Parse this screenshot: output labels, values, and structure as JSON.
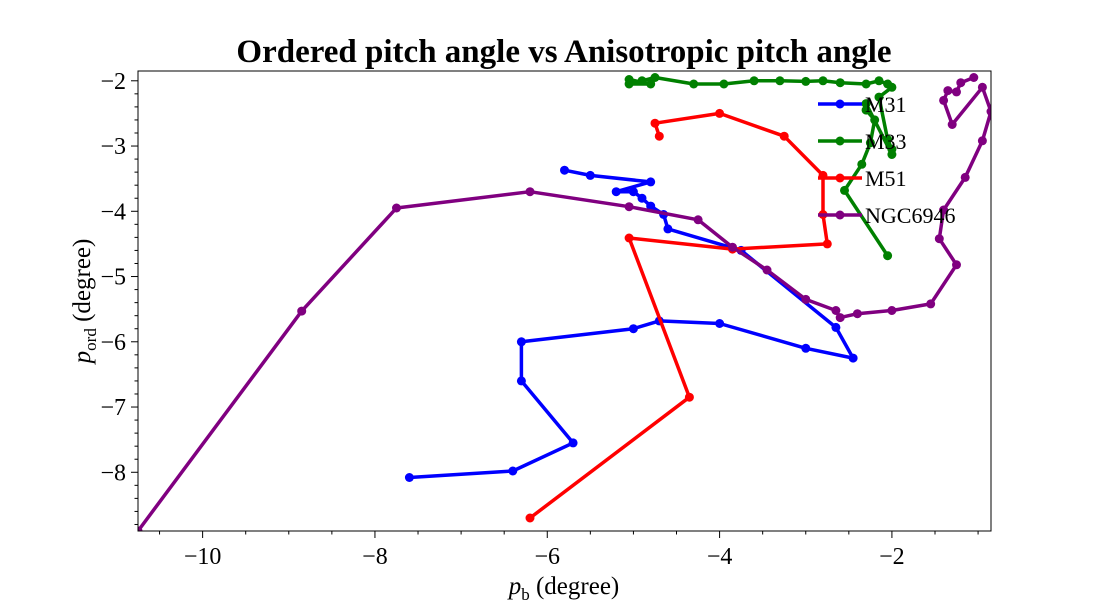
{
  "chart_data": {
    "type": "line",
    "title": "Ordered pitch angle vs Anisotropic pitch angle",
    "xlabel": {
      "main": "p",
      "sub": "b",
      "rest": " (degree)"
    },
    "ylabel": {
      "main": "p",
      "sub": "ord",
      "rest": " (degree)"
    },
    "xlim": [
      -10.75,
      -0.85
    ],
    "ylim": [
      -8.9,
      -1.85
    ],
    "x_ticks": [
      -10,
      -8,
      -6,
      -4,
      -2
    ],
    "x_tick_labels": [
      "−10",
      "−8",
      "−6",
      "−4",
      "−2"
    ],
    "y_ticks": [
      -8,
      -7,
      -6,
      -5,
      -4,
      -3,
      -2
    ],
    "y_tick_labels": [
      "−8",
      "−7",
      "−6",
      "−5",
      "−4",
      "−3",
      "−2"
    ],
    "legend_position": "top-right",
    "series": [
      {
        "name": "M31",
        "color": "#0000ff",
        "x": [
          -7.6,
          -6.4,
          -5.7,
          -6.3,
          -6.3,
          -5.0,
          -4.7,
          -4.0,
          -3.0,
          -2.45,
          -2.65,
          -3.75,
          -4.6,
          -4.65,
          -4.8,
          -4.9,
          -5.0,
          -5.2,
          -4.8,
          -5.5,
          -5.8
        ],
        "y": [
          -8.08,
          -7.98,
          -7.55,
          -6.6,
          -6.0,
          -5.8,
          -5.68,
          -5.72,
          -6.1,
          -6.25,
          -5.78,
          -4.6,
          -4.27,
          -4.05,
          -3.92,
          -3.8,
          -3.7,
          -3.7,
          -3.55,
          -3.45,
          -3.37
        ]
      },
      {
        "name": "M33",
        "color": "#008000",
        "x": [
          -2.05,
          -2.55,
          -2.35,
          -2.25,
          -2.2,
          -2.3,
          -2.3,
          -2.0,
          -2.0,
          -2.05,
          -2.15,
          -2.0,
          -2.05,
          -2.15,
          -2.3,
          -2.6,
          -2.8,
          -3.0,
          -3.3,
          -3.6,
          -3.95,
          -4.3,
          -4.75,
          -4.9,
          -5.05,
          -4.8,
          -5.05
        ],
        "y": [
          -4.68,
          -3.68,
          -3.28,
          -2.95,
          -2.6,
          -2.45,
          -2.35,
          -3.13,
          -3.05,
          -2.9,
          -2.25,
          -2.1,
          -2.05,
          -2.0,
          -2.05,
          -2.03,
          -2.0,
          -2.01,
          -2.0,
          -2.0,
          -2.05,
          -2.05,
          -1.95,
          -2.0,
          -2.05,
          -2.05,
          -1.98
        ]
      },
      {
        "name": "M51",
        "color": "#ff0000",
        "x": [
          -6.2,
          -4.35,
          -5.05,
          -3.85,
          -2.75,
          -2.8,
          -2.8,
          -3.25,
          -4.0,
          -4.75,
          -4.7
        ],
        "y": [
          -8.7,
          -6.85,
          -4.41,
          -4.58,
          -4.5,
          -4.05,
          -3.45,
          -2.85,
          -2.5,
          -2.65,
          -2.85
        ]
      },
      {
        "name": "NGC6946",
        "color": "#800080",
        "x": [
          -10.75,
          -8.85,
          -7.75,
          -6.2,
          -5.05,
          -4.25,
          -3.85,
          -3.45,
          -3.0,
          -2.65,
          -2.6,
          -2.4,
          -2.0,
          -1.55,
          -1.25,
          -1.45,
          -1.4,
          -1.15,
          -0.95,
          -0.85,
          -0.95,
          -1.3,
          -1.4,
          -1.35,
          -1.25,
          -1.2,
          -1.05
        ],
        "y": [
          -8.9,
          -5.53,
          -3.95,
          -3.7,
          -3.93,
          -4.13,
          -4.55,
          -4.9,
          -5.35,
          -5.52,
          -5.63,
          -5.57,
          -5.52,
          -5.42,
          -4.82,
          -4.42,
          -3.98,
          -3.48,
          -2.92,
          -2.47,
          -2.1,
          -2.67,
          -2.3,
          -2.15,
          -2.17,
          -2.03,
          -1.95
        ]
      }
    ]
  }
}
